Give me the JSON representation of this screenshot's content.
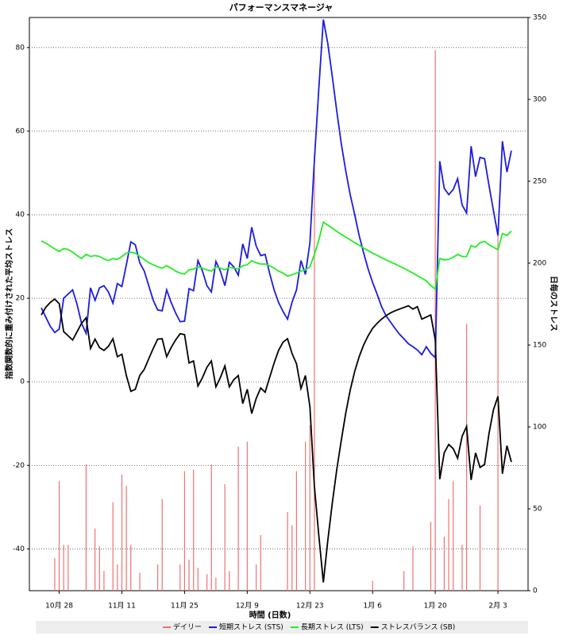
{
  "chart_data": {
    "type": "line",
    "title": "パフォーマンスマネージャ",
    "xlabel": "時間 (日数)",
    "ylabel": "指数関数的に重み付けされた平均ストレス",
    "y2label": "日毎のストレス",
    "categories": [
      null,
      null,
      null,
      null,
      "10月 28",
      null,
      null,
      null,
      null,
      null,
      null,
      null,
      null,
      null,
      null,
      null,
      null,
      null,
      "11月 11",
      null,
      null,
      null,
      null,
      null,
      null,
      null,
      null,
      null,
      null,
      null,
      null,
      null,
      "11月 25",
      null,
      null,
      null,
      null,
      null,
      null,
      null,
      null,
      null,
      null,
      null,
      null,
      null,
      "12月 9",
      null,
      null,
      null,
      null,
      null,
      null,
      null,
      null,
      null,
      null,
      null,
      null,
      null,
      "12月 23",
      null,
      null,
      null,
      null,
      null,
      null,
      null,
      null,
      null,
      null,
      null,
      null,
      null,
      "1月 6",
      null,
      null,
      null,
      null,
      null,
      null,
      null,
      null,
      null,
      null,
      null,
      null,
      null,
      "1月 20",
      null,
      null,
      null,
      null,
      null,
      null,
      null,
      null,
      null,
      null,
      null,
      null,
      null,
      "2月 3",
      null,
      null,
      null
    ],
    "series": [
      {
        "name": "デイリー",
        "type": "bar",
        "axis": "y2",
        "color": "#f07272",
        "values": [
          0,
          0,
          0,
          20,
          67,
          28,
          28,
          0,
          0,
          0,
          77,
          0,
          38,
          27,
          12,
          0,
          54,
          16,
          71,
          64,
          28,
          0,
          11,
          0,
          0,
          0,
          16,
          56,
          0,
          0,
          0,
          16,
          73,
          19,
          74,
          14,
          0,
          10,
          77,
          8,
          0,
          65,
          12,
          0,
          88,
          0,
          91,
          0,
          16,
          34,
          0,
          0,
          0,
          0,
          0,
          48,
          40,
          73,
          0,
          91,
          101,
          267,
          0,
          0,
          0,
          0,
          0,
          0,
          0,
          0,
          0,
          0,
          0,
          0,
          6,
          0,
          0,
          0,
          0,
          0,
          0,
          12,
          0,
          27,
          0,
          0,
          0,
          42,
          330,
          0,
          33,
          56,
          67,
          0,
          28,
          163,
          0,
          0,
          52,
          0,
          0,
          0,
          220,
          0,
          0,
          0
        ]
      },
      {
        "name": "短期ストレス (STS)",
        "type": "line",
        "color": "#1c1ce0",
        "values": [
          17.7,
          15.5,
          13.3,
          11.8,
          12.6,
          20,
          21,
          22,
          18.5,
          14,
          11.6,
          22.5,
          19.5,
          22.5,
          23,
          21.5,
          18.8,
          23.5,
          22.8,
          28,
          33.5,
          32.8,
          28.5,
          26.5,
          23,
          19.5,
          17.2,
          17,
          22,
          19,
          16.5,
          14.4,
          14.5,
          22.3,
          21.8,
          29,
          26.5,
          23,
          21.5,
          28.8,
          26.5,
          23,
          28.6,
          27.5,
          25.5,
          33,
          29.5,
          37,
          32.5,
          30.2,
          30.5,
          26,
          22,
          19,
          16.8,
          15,
          19,
          22,
          29,
          25.7,
          33.3,
          53,
          70.5,
          86.7,
          81,
          73,
          64.8,
          57,
          50.5,
          44.8,
          40,
          35,
          30.9,
          27,
          23.8,
          21,
          18,
          15.8,
          14.3,
          12.8,
          11.4,
          10.3,
          9.1,
          8.4,
          7.6,
          6.5,
          8.4,
          6.8,
          5.8,
          52.8,
          46.3,
          44.8,
          46,
          48.6,
          42.3,
          40.4,
          56.4,
          49.1,
          53.7,
          53.4,
          47,
          41,
          35,
          57.6,
          50.2,
          55.3
        ]
      },
      {
        "name": "長期ストレス (LTS)",
        "type": "line",
        "color": "#22ee22",
        "values": [
          33.7,
          33.2,
          32.5,
          31.8,
          31.2,
          31.9,
          31.7,
          31,
          30.2,
          29.5,
          30.5,
          30,
          30.2,
          30,
          29.4,
          29,
          29.5,
          29.3,
          30,
          30.8,
          31,
          30.8,
          30,
          29.3,
          28.5,
          28,
          27.5,
          27.2,
          27.8,
          27.2,
          26.5,
          26,
          25.8,
          26.8,
          27,
          27.5,
          27.2,
          26.8,
          26.5,
          27.5,
          27.2,
          26.8,
          27.4,
          27.2,
          27,
          27.8,
          28,
          29,
          28.5,
          28.2,
          28.2,
          27.8,
          27.2,
          26.5,
          26,
          25.3,
          25.6,
          26,
          26.5,
          26.8,
          27.5,
          30.5,
          34,
          38.2,
          37.5,
          36.8,
          36,
          35.3,
          34.6,
          34,
          33.3,
          32.7,
          32,
          31.4,
          30.8,
          30.3,
          29.7,
          29.2,
          28.7,
          28.2,
          27.7,
          27.2,
          26.6,
          26,
          25.4,
          24.8,
          24.2,
          23,
          22.2,
          29.5,
          29.2,
          29.3,
          29.8,
          30.5,
          30,
          30,
          32.6,
          32.2,
          33.3,
          33.6,
          32.8,
          32.2,
          31.6,
          35.5,
          35,
          36.1
        ]
      },
      {
        "name": "ストレスバランス (SB)",
        "type": "line",
        "color": "#000000",
        "values": [
          16,
          17.8,
          19,
          19.8,
          18.7,
          12,
          11,
          10,
          12,
          14,
          15.3,
          8,
          10.2,
          8.2,
          7.5,
          8.5,
          10.3,
          6,
          6.6,
          1.5,
          -2.3,
          -1.8,
          1.5,
          3,
          5.5,
          8,
          10.2,
          10.3,
          6,
          8.2,
          10,
          11.5,
          11.3,
          4.5,
          5,
          -1,
          1,
          3.5,
          5,
          -1.2,
          1,
          3.8,
          -1.2,
          0.5,
          1.5,
          -5.2,
          -1.8,
          -7.6,
          -4,
          -1.5,
          -2.5,
          1,
          4.5,
          7.5,
          9.5,
          10.3,
          6.8,
          4.3,
          -1.6,
          1.5,
          -6,
          -25,
          -37,
          -48,
          -38,
          -29,
          -21,
          -14,
          -7.5,
          -2,
          2.5,
          6,
          8.8,
          11,
          12.8,
          14,
          15,
          15.8,
          16.5,
          17,
          17.4,
          17.8,
          18.2,
          17.4,
          18,
          15,
          15.5,
          16,
          10,
          -23.3,
          -17,
          -15,
          -16,
          -18.3,
          -13,
          -10.7,
          -23.5,
          -17,
          -20.5,
          -19.8,
          -12.4,
          -6.7,
          -3.5,
          -22,
          -15.3,
          -19.2
        ]
      }
    ],
    "ylim": [
      -50,
      87.2
    ],
    "yticks": [
      -40,
      -20,
      0,
      20,
      40,
      60,
      80
    ],
    "y2lim": [
      0,
      350
    ],
    "y2ticks": [
      0,
      50,
      100,
      150,
      200,
      250,
      300,
      350
    ],
    "grid": true,
    "legend": "bottom"
  }
}
